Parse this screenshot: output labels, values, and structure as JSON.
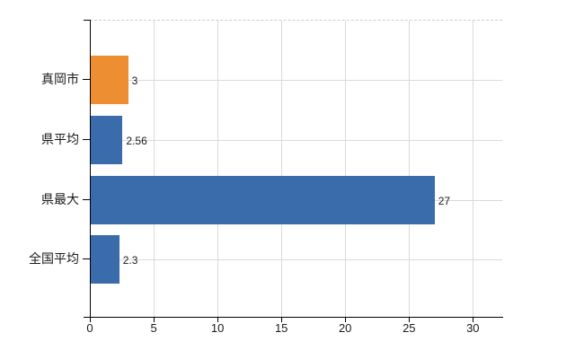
{
  "chart_data": {
    "type": "bar",
    "orientation": "horizontal",
    "title": "",
    "xlabel": "",
    "ylabel": "",
    "legend": "none",
    "grid": true,
    "categories": [
      "真岡市",
      "県平均",
      "県最大",
      "全国平均"
    ],
    "values": [
      3,
      2.56,
      27,
      2.3
    ],
    "value_labels": [
      "3",
      "2.56",
      "27",
      "2.3"
    ],
    "bar_colors": [
      "#EE8E33",
      "#3A6CAB",
      "#3A6CAB",
      "#3A6CAB"
    ],
    "xticks": [
      0,
      5,
      10,
      15,
      20,
      25,
      30
    ],
    "xlim": [
      0,
      32.3
    ]
  },
  "colors": {
    "background": "#FFFFFF",
    "axis": "#000000",
    "gridline": "#D9D9D9",
    "top_border": "#CCCCCC",
    "text": "#1A1A1A",
    "highlight_bar": "#EE8E33",
    "default_bar": "#3A6CAB"
  }
}
